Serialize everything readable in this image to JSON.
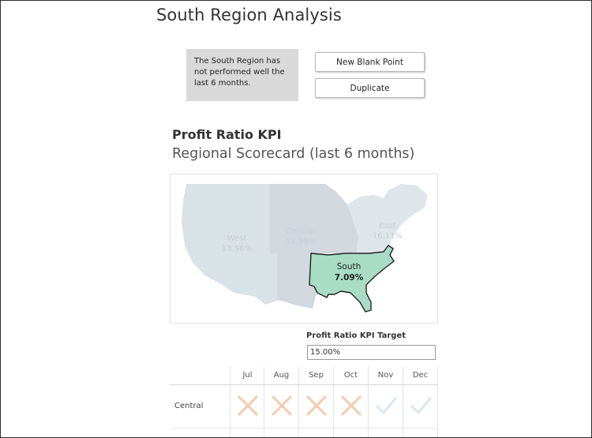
{
  "page": {
    "title": "South Region Analysis"
  },
  "note": {
    "text": "The South Region has not performed well the last 6 months."
  },
  "buttons": {
    "new_blank_point": "New Blank Point",
    "duplicate": "Duplicate"
  },
  "kpi": {
    "title": "Profit Ratio KPI",
    "subtitle": "Regional Scorecard (last 6 months)"
  },
  "map": {
    "regions": [
      {
        "name": "West",
        "value": "13.56%",
        "highlighted": false
      },
      {
        "name": "Central",
        "value": "19.99%",
        "highlighted": false
      },
      {
        "name": "East",
        "value": "16.11%",
        "highlighted": false
      },
      {
        "name": "South",
        "value": "7.09%",
        "highlighted": true
      }
    ],
    "colors": {
      "west": "#d9e2e6",
      "central": "#d3d8de",
      "east": "#dfe6ea",
      "south": "#a8dcc4"
    }
  },
  "target": {
    "label": "Profit Ratio KPI Target",
    "value": "15.00%"
  },
  "scorecard": {
    "months": [
      "Jul",
      "Aug",
      "Sep",
      "Oct",
      "Nov",
      "Dec"
    ],
    "rows": [
      {
        "label": "Central",
        "status": [
          "miss",
          "miss",
          "miss",
          "miss",
          "met",
          "met"
        ]
      }
    ],
    "colors": {
      "miss": "#f5cdb2",
      "met": "#dde9ef"
    }
  }
}
